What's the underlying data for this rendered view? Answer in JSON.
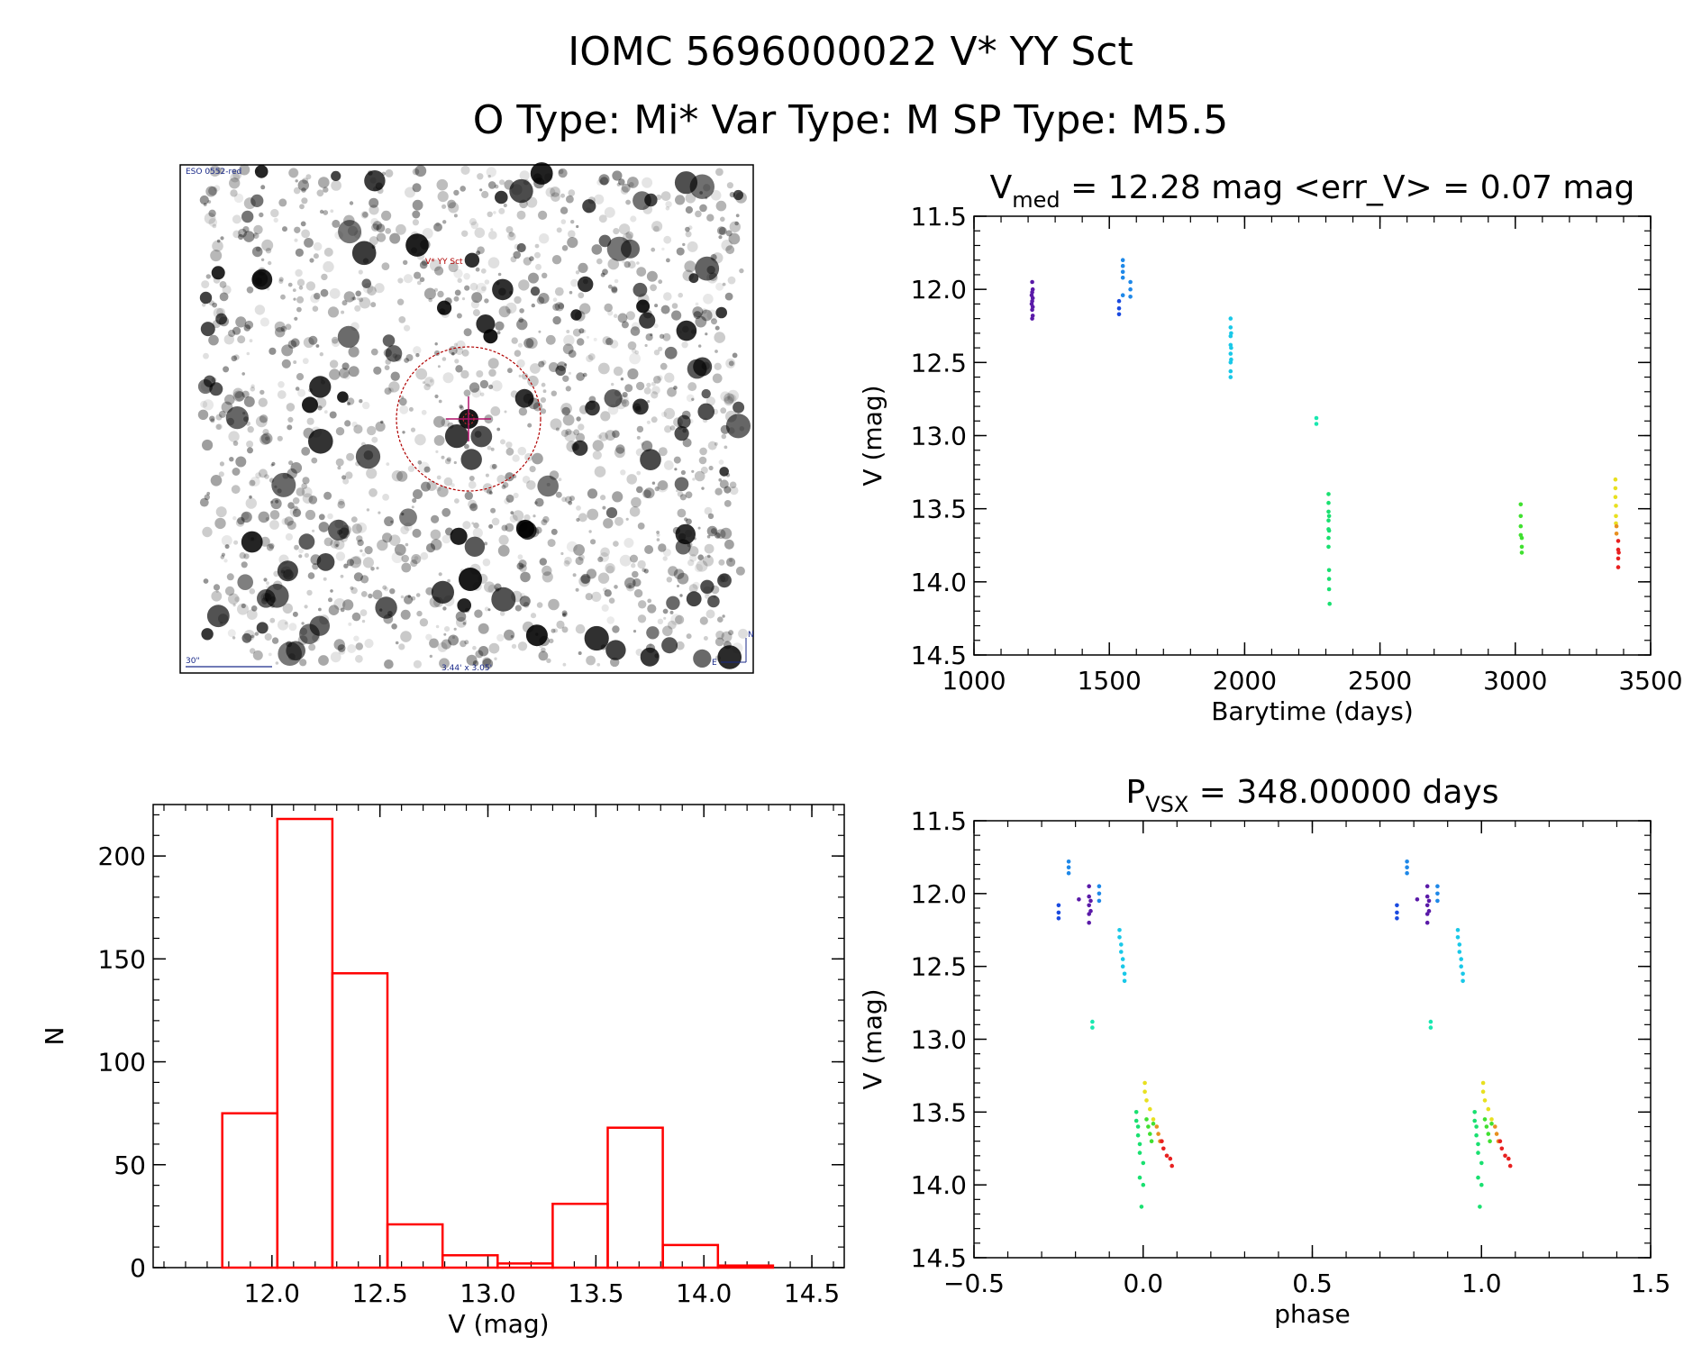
{
  "header": {
    "title_line1": "IOMC 5696000022    V* YY Sct",
    "title_line2": "O Type: Mi*  Var Type: M  SP Type: M5.5"
  },
  "image_panel": {
    "survey_label": "ESO 0552-red",
    "object_label": "V* YY Sct",
    "scale_label": "30\"",
    "size_label": "3.44' x 3.05'",
    "compass_n": "N",
    "compass_e": "E"
  },
  "chart_data": [
    {
      "type": "scatter",
      "title_parts": {
        "main": "V",
        "sub": "med",
        "rest": " = 12.28 mag <err_V> = 0.07 mag"
      },
      "xlabel": "Barytime (days)",
      "ylabel": "V (mag)",
      "xlim": [
        1000,
        3500
      ],
      "ylim": [
        14.5,
        11.5
      ],
      "y_inverted": true,
      "xticks": [
        1000,
        1500,
        2000,
        2500,
        3000,
        3500
      ],
      "xticklabels": [
        "1000",
        "1500",
        "2000",
        "2500",
        "3000",
        "3500"
      ],
      "yticks": [
        11.5,
        12.0,
        12.5,
        13.0,
        13.5,
        14.0,
        14.5
      ],
      "yticklabels": [
        "11.5",
        "12.0",
        "12.5",
        "13.0",
        "13.5",
        "14.0",
        "14.5"
      ],
      "series": [
        {
          "color": "#5a1aa8",
          "points": [
            [
              1215,
              11.95
            ],
            [
              1215,
              12.02
            ],
            [
              1215,
              12.08
            ],
            [
              1215,
              12.14
            ],
            [
              1215,
              12.2
            ],
            [
              1217,
              12.0
            ],
            [
              1217,
              12.06
            ],
            [
              1217,
              12.12
            ],
            [
              1217,
              12.18
            ],
            [
              1213,
              12.04
            ],
            [
              1213,
              12.1
            ]
          ]
        },
        {
          "color": "#1a4ae0",
          "points": [
            [
              1536,
              12.08
            ],
            [
              1536,
              12.13
            ],
            [
              1536,
              12.17
            ]
          ]
        },
        {
          "color": "#1e88e8",
          "points": [
            [
              1550,
              11.8
            ],
            [
              1550,
              11.84
            ],
            [
              1550,
              11.88
            ],
            [
              1550,
              11.92
            ],
            [
              1550,
              12.04
            ],
            [
              1578,
              11.95
            ],
            [
              1578,
              12.0
            ],
            [
              1578,
              12.05
            ]
          ]
        },
        {
          "color": "#19c8e8",
          "points": [
            [
              1948,
              12.2
            ],
            [
              1948,
              12.26
            ],
            [
              1948,
              12.32
            ],
            [
              1948,
              12.38
            ],
            [
              1948,
              12.44
            ],
            [
              1948,
              12.5
            ],
            [
              1948,
              12.56
            ],
            [
              1948,
              12.6
            ],
            [
              1950,
              12.3
            ],
            [
              1950,
              12.4
            ],
            [
              1950,
              12.48
            ]
          ]
        },
        {
          "color": "#19e8b0",
          "points": [
            [
              2265,
              12.88
            ],
            [
              2265,
              12.92
            ]
          ]
        },
        {
          "color": "#19e070",
          "points": [
            [
              2310,
              13.4
            ],
            [
              2310,
              13.46
            ],
            [
              2310,
              13.52
            ],
            [
              2310,
              13.58
            ],
            [
              2310,
              13.64
            ],
            [
              2310,
              13.7
            ],
            [
              2310,
              13.76
            ],
            [
              2312,
              13.55
            ],
            [
              2312,
              13.65
            ],
            [
              2312,
              13.92
            ],
            [
              2312,
              13.98
            ],
            [
              2312,
              14.05
            ],
            [
              2314,
              14.15
            ]
          ]
        },
        {
          "color": "#40e030",
          "points": [
            [
              3020,
              13.47
            ],
            [
              3020,
              13.55
            ],
            [
              3020,
              13.62
            ],
            [
              3020,
              13.68
            ],
            [
              3024,
              13.7
            ],
            [
              3024,
              13.76
            ],
            [
              3024,
              13.8
            ]
          ]
        },
        {
          "color": "#e8e020",
          "points": [
            [
              3370,
              13.3
            ],
            [
              3370,
              13.36
            ],
            [
              3370,
              13.42
            ],
            [
              3372,
              13.48
            ],
            [
              3372,
              13.55
            ],
            [
              3372,
              13.6
            ]
          ]
        },
        {
          "color": "#e89020",
          "points": [
            [
              3374,
              13.62
            ],
            [
              3374,
              13.67
            ]
          ]
        },
        {
          "color": "#e82020",
          "points": [
            [
              3380,
              13.72
            ],
            [
              3380,
              13.78
            ],
            [
              3380,
              13.84
            ],
            [
              3380,
              13.9
            ],
            [
              3382,
              13.8
            ]
          ]
        }
      ]
    },
    {
      "type": "scatter",
      "title_parts": {
        "main": "P",
        "sub": "VSX",
        "rest": " = 348.00000 days"
      },
      "xlabel": "phase",
      "ylabel": "V (mag)",
      "xlim": [
        -0.5,
        1.5
      ],
      "ylim": [
        14.5,
        11.5
      ],
      "y_inverted": true,
      "xticks": [
        -0.5,
        0.0,
        0.5,
        1.0,
        1.5
      ],
      "xticklabels": [
        "−0.5",
        "0.0",
        "0.5",
        "1.0",
        "1.5"
      ],
      "yticks": [
        11.5,
        12.0,
        12.5,
        13.0,
        13.5,
        14.0,
        14.5
      ],
      "yticklabels": [
        "11.5",
        "12.0",
        "12.5",
        "13.0",
        "13.5",
        "14.0",
        "14.5"
      ],
      "series": [
        {
          "color": "#5a1aa8",
          "points": [
            [
              -0.16,
              11.95
            ],
            [
              -0.16,
              12.02
            ],
            [
              -0.16,
              12.08
            ],
            [
              -0.16,
              12.14
            ],
            [
              -0.16,
              12.2
            ],
            [
              -0.155,
              12.05
            ],
            [
              -0.155,
              12.12
            ],
            [
              -0.19,
              12.04
            ],
            [
              0.84,
              11.95
            ],
            [
              0.84,
              12.02
            ],
            [
              0.84,
              12.08
            ],
            [
              0.84,
              12.14
            ],
            [
              0.84,
              12.2
            ],
            [
              0.845,
              12.05
            ],
            [
              0.845,
              12.12
            ],
            [
              0.81,
              12.04
            ]
          ]
        },
        {
          "color": "#1a4ae0",
          "points": [
            [
              -0.25,
              12.08
            ],
            [
              -0.25,
              12.13
            ],
            [
              -0.25,
              12.17
            ],
            [
              0.75,
              12.08
            ],
            [
              0.75,
              12.13
            ],
            [
              0.75,
              12.17
            ]
          ]
        },
        {
          "color": "#1e88e8",
          "points": [
            [
              -0.22,
              11.78
            ],
            [
              -0.22,
              11.82
            ],
            [
              -0.22,
              11.86
            ],
            [
              -0.13,
              11.95
            ],
            [
              -0.13,
              12.0
            ],
            [
              -0.13,
              12.05
            ],
            [
              0.78,
              11.78
            ],
            [
              0.78,
              11.82
            ],
            [
              0.78,
              11.86
            ],
            [
              0.87,
              11.95
            ],
            [
              0.87,
              12.0
            ],
            [
              0.87,
              12.05
            ]
          ]
        },
        {
          "color": "#19c8e8",
          "points": [
            [
              -0.07,
              12.25
            ],
            [
              -0.07,
              12.3
            ],
            [
              -0.065,
              12.35
            ],
            [
              -0.065,
              12.4
            ],
            [
              -0.06,
              12.45
            ],
            [
              -0.06,
              12.5
            ],
            [
              -0.055,
              12.55
            ],
            [
              -0.055,
              12.6
            ],
            [
              0.93,
              12.25
            ],
            [
              0.93,
              12.3
            ],
            [
              0.935,
              12.35
            ],
            [
              0.935,
              12.4
            ],
            [
              0.94,
              12.45
            ],
            [
              0.94,
              12.5
            ],
            [
              0.945,
              12.55
            ],
            [
              0.945,
              12.6
            ]
          ]
        },
        {
          "color": "#19e8b0",
          "points": [
            [
              -0.15,
              12.88
            ],
            [
              -0.15,
              12.92
            ],
            [
              0.85,
              12.88
            ],
            [
              0.85,
              12.92
            ]
          ]
        },
        {
          "color": "#19e070",
          "points": [
            [
              -0.02,
              13.5
            ],
            [
              -0.02,
              13.56
            ],
            [
              -0.015,
              13.6
            ],
            [
              -0.015,
              13.66
            ],
            [
              -0.01,
              13.72
            ],
            [
              -0.01,
              13.78
            ],
            [
              0.0,
              13.85
            ],
            [
              -0.01,
              13.95
            ],
            [
              0.0,
              14.0
            ],
            [
              -0.005,
              14.15
            ],
            [
              0.98,
              13.5
            ],
            [
              0.98,
              13.56
            ],
            [
              0.985,
              13.6
            ],
            [
              0.985,
              13.66
            ],
            [
              0.99,
              13.72
            ],
            [
              0.99,
              13.78
            ],
            [
              1.0,
              13.85
            ],
            [
              0.99,
              13.95
            ],
            [
              1.0,
              14.0
            ],
            [
              0.995,
              14.15
            ]
          ]
        },
        {
          "color": "#40e030",
          "points": [
            [
              0.01,
              13.55
            ],
            [
              0.015,
              13.6
            ],
            [
              0.02,
              13.65
            ],
            [
              0.03,
              13.58
            ],
            [
              0.025,
              13.7
            ],
            [
              1.01,
              13.55
            ],
            [
              1.015,
              13.6
            ],
            [
              1.02,
              13.65
            ],
            [
              1.03,
              13.58
            ],
            [
              1.025,
              13.7
            ]
          ]
        },
        {
          "color": "#e8e020",
          "points": [
            [
              0.005,
              13.3
            ],
            [
              0.005,
              13.36
            ],
            [
              0.01,
              13.42
            ],
            [
              0.02,
              13.48
            ],
            [
              0.03,
              13.55
            ],
            [
              1.005,
              13.3
            ],
            [
              1.005,
              13.36
            ],
            [
              1.01,
              13.42
            ],
            [
              1.02,
              13.48
            ],
            [
              1.03,
              13.55
            ]
          ]
        },
        {
          "color": "#e89020",
          "points": [
            [
              0.04,
              13.6
            ],
            [
              0.045,
              13.65
            ],
            [
              0.05,
              13.7
            ],
            [
              1.04,
              13.6
            ],
            [
              1.045,
              13.65
            ],
            [
              1.05,
              13.7
            ]
          ]
        },
        {
          "color": "#e82020",
          "points": [
            [
              0.055,
              13.7
            ],
            [
              0.06,
              13.75
            ],
            [
              0.07,
              13.8
            ],
            [
              0.08,
              13.82
            ],
            [
              0.085,
              13.87
            ],
            [
              1.055,
              13.7
            ],
            [
              1.06,
              13.75
            ],
            [
              1.07,
              13.8
            ],
            [
              1.08,
              13.82
            ],
            [
              1.085,
              13.87
            ]
          ]
        }
      ]
    },
    {
      "type": "bar",
      "histogram": true,
      "xlabel": "V (mag)",
      "ylabel": "N",
      "xlim": [
        11.45,
        14.65
      ],
      "ylim": [
        0,
        225
      ],
      "xticks": [
        12.0,
        12.5,
        13.0,
        13.5,
        14.0,
        14.5
      ],
      "xticklabels": [
        "12.0",
        "12.5",
        "13.0",
        "13.5",
        "14.0",
        "14.5"
      ],
      "yticks": [
        0,
        50,
        100,
        150,
        200
      ],
      "yticklabels": [
        "0",
        "50",
        "100",
        "150",
        "200"
      ],
      "bin_edges": [
        11.77,
        12.025,
        12.28,
        12.535,
        12.79,
        13.045,
        13.3,
        13.555,
        13.81,
        14.065,
        14.32
      ],
      "values": [
        75,
        218,
        143,
        21,
        6,
        2,
        31,
        68,
        11,
        1
      ],
      "bar_color": "#ff0000"
    }
  ]
}
